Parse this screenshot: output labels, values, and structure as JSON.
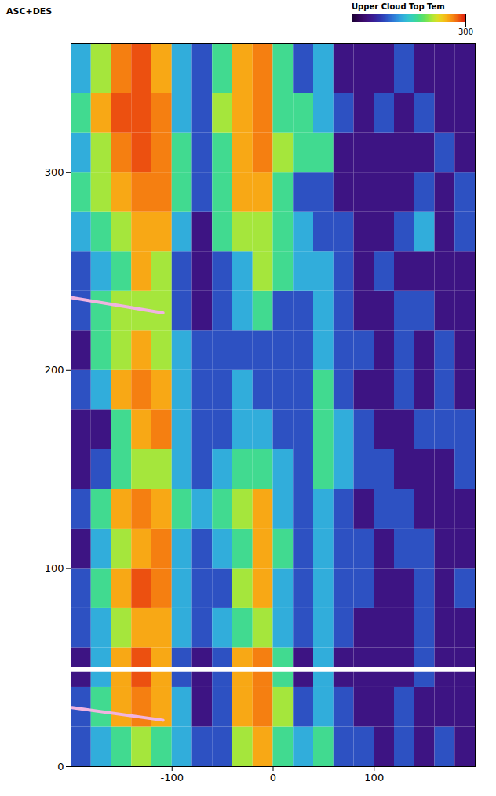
{
  "chart_data": {
    "type": "heatmap",
    "title": "ASC+DES",
    "colorbar_label": "Upper Cloud Top Tem",
    "colorbar_range": [
      200,
      300
    ],
    "colorbar_ticks": [
      300
    ],
    "xlim": [
      -200,
      200
    ],
    "ylim": [
      0,
      365
    ],
    "xticks": [
      -100,
      0,
      100
    ],
    "yticks": [
      0,
      100,
      200,
      300
    ],
    "x_edges": [
      -200,
      -180,
      -160,
      -140,
      -120,
      -100,
      -80,
      -60,
      -40,
      -20,
      0,
      20,
      40,
      60,
      80,
      100,
      120,
      140,
      160,
      180,
      200
    ],
    "y_edges": [
      0,
      20,
      40,
      60,
      80,
      100,
      120,
      140,
      160,
      180,
      200,
      220,
      240,
      260,
      280,
      300,
      320,
      340,
      365
    ],
    "cells": [
      [
        230,
        245,
        258,
        270,
        258,
        245,
        230,
        230,
        270,
        285,
        258,
        245,
        258,
        230,
        230,
        215,
        230,
        215,
        230,
        215
      ],
      [
        230,
        258,
        285,
        290,
        285,
        245,
        215,
        230,
        285,
        290,
        270,
        230,
        245,
        230,
        215,
        215,
        230,
        215,
        215,
        215
      ],
      [
        215,
        245,
        285,
        295,
        285,
        230,
        215,
        230,
        285,
        290,
        258,
        215,
        245,
        215,
        215,
        215,
        215,
        230,
        215,
        215
      ],
      [
        230,
        245,
        270,
        285,
        285,
        245,
        230,
        245,
        258,
        270,
        245,
        230,
        245,
        230,
        215,
        215,
        215,
        230,
        215,
        215
      ],
      [
        230,
        258,
        285,
        295,
        290,
        245,
        230,
        230,
        270,
        285,
        245,
        230,
        245,
        230,
        230,
        215,
        215,
        230,
        215,
        230
      ],
      [
        215,
        245,
        270,
        285,
        290,
        245,
        230,
        245,
        258,
        285,
        258,
        230,
        245,
        230,
        230,
        215,
        230,
        230,
        215,
        215
      ],
      [
        230,
        258,
        285,
        290,
        285,
        258,
        245,
        258,
        270,
        285,
        245,
        230,
        245,
        230,
        215,
        230,
        230,
        215,
        215,
        215
      ],
      [
        215,
        230,
        258,
        270,
        270,
        245,
        230,
        245,
        258,
        258,
        245,
        230,
        258,
        245,
        230,
        230,
        215,
        215,
        215,
        230
      ],
      [
        215,
        215,
        258,
        285,
        290,
        245,
        230,
        230,
        245,
        245,
        230,
        230,
        258,
        245,
        230,
        215,
        215,
        230,
        230,
        230
      ],
      [
        230,
        245,
        285,
        290,
        285,
        245,
        230,
        230,
        245,
        230,
        230,
        230,
        258,
        230,
        215,
        215,
        230,
        215,
        230,
        215
      ],
      [
        215,
        258,
        270,
        285,
        270,
        245,
        230,
        230,
        230,
        230,
        230,
        230,
        245,
        230,
        230,
        215,
        230,
        215,
        230,
        215
      ],
      [
        230,
        258,
        270,
        270,
        270,
        230,
        215,
        230,
        245,
        258,
        230,
        230,
        245,
        230,
        215,
        215,
        230,
        230,
        215,
        215
      ],
      [
        230,
        245,
        258,
        285,
        270,
        230,
        215,
        230,
        245,
        270,
        258,
        245,
        245,
        230,
        215,
        230,
        215,
        215,
        215,
        215
      ],
      [
        245,
        258,
        270,
        285,
        285,
        245,
        215,
        258,
        270,
        270,
        258,
        245,
        230,
        230,
        215,
        215,
        230,
        245,
        215,
        230
      ],
      [
        258,
        270,
        285,
        290,
        290,
        258,
        230,
        258,
        285,
        285,
        258,
        230,
        230,
        215,
        215,
        215,
        215,
        230,
        215,
        230
      ],
      [
        245,
        270,
        290,
        295,
        290,
        258,
        230,
        258,
        285,
        290,
        270,
        258,
        258,
        215,
        215,
        215,
        215,
        215,
        230,
        215
      ],
      [
        258,
        285,
        295,
        295,
        290,
        245,
        230,
        270,
        285,
        290,
        258,
        258,
        245,
        230,
        215,
        230,
        215,
        230,
        215,
        215
      ],
      [
        245,
        270,
        290,
        295,
        285,
        245,
        230,
        258,
        285,
        290,
        258,
        230,
        245,
        215,
        215,
        215,
        230,
        215,
        215,
        215
      ]
    ],
    "gap_y": 49,
    "lines": [
      {
        "x": [
          -199,
          -109
        ],
        "y": [
          236.6,
          229
        ],
        "color": "#f0b4e0"
      },
      {
        "x": [
          -199,
          -109
        ],
        "y": [
          29.8,
          23.4
        ],
        "color": "#f0b4e0"
      }
    ]
  }
}
